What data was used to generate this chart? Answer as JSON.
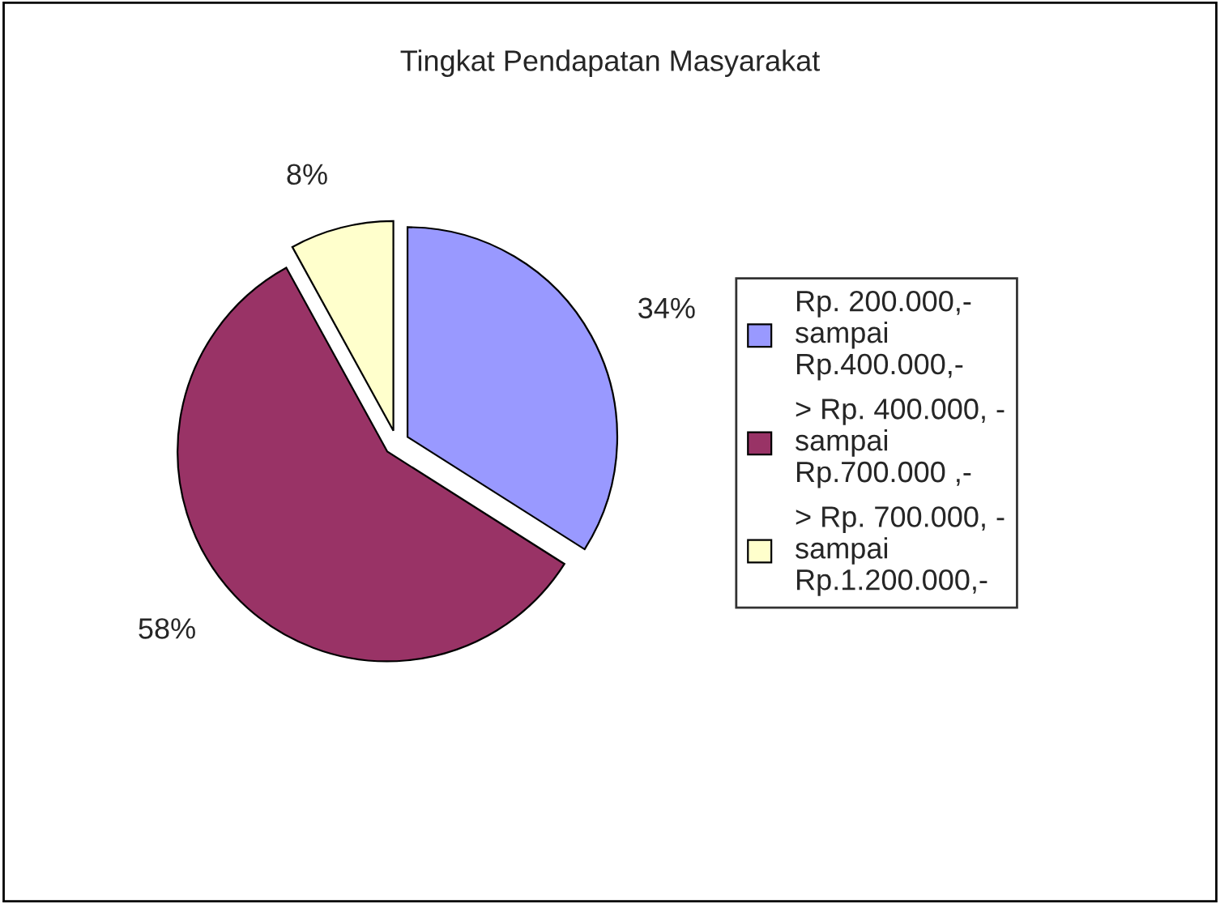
{
  "chart_data": {
    "type": "pie",
    "title": "Tingkat Pendapatan Masyarakat",
    "categories": [
      "Rp. 200.000,-\nsampai\nRp.400.000,-",
      "> Rp. 400.000, -\nsampai\nRp.700.000 ,-",
      "> Rp. 700.000, -\nsampai\nRp.1.200.000,-"
    ],
    "values": [
      34,
      58,
      8
    ],
    "value_labels": [
      "34%",
      "58%",
      "8%"
    ],
    "colors": [
      "#9999ff",
      "#993366",
      "#ffffcc"
    ],
    "legend": "right"
  }
}
